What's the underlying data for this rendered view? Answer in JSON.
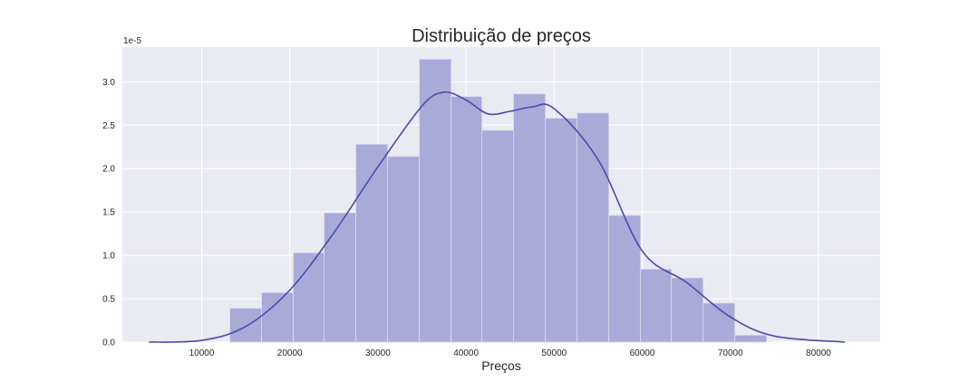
{
  "chart_data": {
    "type": "bar",
    "title": "Distribuição de preços",
    "xlabel": "Preços",
    "ylabel": "",
    "y_offset_label": "1e-5",
    "y_scale_exponent": -5,
    "xlim": [
      1000,
      87000
    ],
    "ylim": [
      0,
      3.4e-05
    ],
    "x_ticks": [
      10000,
      20000,
      30000,
      40000,
      50000,
      60000,
      70000,
      80000
    ],
    "y_ticks": [
      0.0,
      0.5,
      1.0,
      1.5,
      2.0,
      2.5,
      3.0
    ],
    "y_tick_labels": [
      "0.0",
      "0.5",
      "1.0",
      "1.5",
      "2.0",
      "2.5",
      "3.0"
    ],
    "grid": true,
    "bins": [
      {
        "x0": 13200,
        "x1": 16800,
        "density": 3.9e-06
      },
      {
        "x0": 16800,
        "x1": 20400,
        "density": 5.7e-06
      },
      {
        "x0": 20400,
        "x1": 23900,
        "density": 1.03e-05
      },
      {
        "x0": 23900,
        "x1": 27500,
        "density": 1.49e-05
      },
      {
        "x0": 27500,
        "x1": 31100,
        "density": 2.28e-05
      },
      {
        "x0": 31100,
        "x1": 34700,
        "density": 2.14e-05
      },
      {
        "x0": 34700,
        "x1": 38300,
        "density": 3.26e-05
      },
      {
        "x0": 38300,
        "x1": 41800,
        "density": 2.83e-05
      },
      {
        "x0": 41800,
        "x1": 45400,
        "density": 2.44e-05
      },
      {
        "x0": 45400,
        "x1": 49000,
        "density": 2.86e-05
      },
      {
        "x0": 49000,
        "x1": 52600,
        "density": 2.58e-05
      },
      {
        "x0": 52600,
        "x1": 56200,
        "density": 2.64e-05
      },
      {
        "x0": 56200,
        "x1": 59800,
        "density": 1.46e-05
      },
      {
        "x0": 59800,
        "x1": 63300,
        "density": 8.4e-06
      },
      {
        "x0": 63300,
        "x1": 66900,
        "density": 7.4e-06
      },
      {
        "x0": 66900,
        "x1": 70500,
        "density": 4.5e-06
      },
      {
        "x0": 70500,
        "x1": 74100,
        "density": 8e-07
      }
    ],
    "kde": {
      "x": [
        4000,
        10000,
        15000,
        20000,
        25000,
        30000,
        35000,
        37500,
        40000,
        42500,
        45000,
        47500,
        50000,
        55000,
        60000,
        65000,
        70000,
        75000,
        83000
      ],
      "y": [
        0,
        2e-07,
        1.8e-06,
        6e-06,
        1.26e-05,
        2.02e-05,
        2.72e-05,
        2.88e-05,
        2.79e-05,
        2.63e-05,
        2.66e-05,
        2.71e-05,
        2.69e-05,
        2.1e-05,
        1.05e-05,
        6.9e-06,
        2.9e-06,
        7e-07,
        0
      ]
    },
    "colors": {
      "bar": "#aaaad9",
      "bar_edge": "#d7d7ef",
      "line": "#4b4bab",
      "plot_bg": "#eaeaf2",
      "grid": "#ffffff",
      "text": "#262626"
    }
  }
}
